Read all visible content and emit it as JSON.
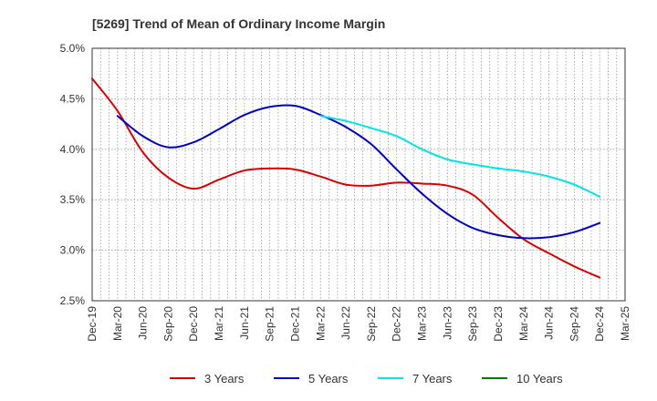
{
  "chart_data": {
    "type": "line",
    "title": "[5269]  Trend of Mean of Ordinary Income Margin",
    "xlabel": "",
    "ylabel": "",
    "x_ticks": [
      "Dec-19",
      "Mar-20",
      "Jun-20",
      "Sep-20",
      "Dec-20",
      "Mar-21",
      "Jun-21",
      "Sep-21",
      "Dec-21",
      "Mar-22",
      "Jun-22",
      "Sep-22",
      "Dec-22",
      "Mar-23",
      "Jun-23",
      "Sep-23",
      "Dec-23",
      "Mar-24",
      "Jun-24",
      "Sep-24",
      "Dec-24",
      "Mar-25"
    ],
    "y_ticks": [
      "2.5%",
      "3.0%",
      "3.5%",
      "4.0%",
      "4.5%",
      "5.0%"
    ],
    "ylim": [
      2.5,
      5.0
    ],
    "grid": true,
    "legend_position": "bottom",
    "series": [
      {
        "name": "3 Years",
        "color": "#dd0000",
        "x": [
          "Dec-19",
          "Mar-20",
          "Jun-20",
          "Sep-20",
          "Dec-20",
          "Mar-21",
          "Jun-21",
          "Sep-21",
          "Dec-21",
          "Mar-22",
          "Jun-22",
          "Sep-22",
          "Dec-22",
          "Mar-23",
          "Jun-23",
          "Sep-23",
          "Dec-23",
          "Mar-24",
          "Jun-24",
          "Sep-24",
          "Dec-24"
        ],
        "values": [
          4.7,
          4.38,
          3.97,
          3.72,
          3.61,
          3.7,
          3.79,
          3.81,
          3.8,
          3.73,
          3.65,
          3.64,
          3.67,
          3.66,
          3.64,
          3.55,
          3.32,
          3.11,
          2.97,
          2.84,
          2.73
        ]
      },
      {
        "name": "5 Years",
        "color": "#0000cc",
        "x": [
          "Mar-20",
          "Jun-20",
          "Sep-20",
          "Dec-20",
          "Mar-21",
          "Jun-21",
          "Sep-21",
          "Dec-21",
          "Mar-22",
          "Jun-22",
          "Sep-22",
          "Dec-22",
          "Mar-23",
          "Jun-23",
          "Sep-23",
          "Dec-23",
          "Mar-24",
          "Jun-24",
          "Sep-24",
          "Dec-24"
        ],
        "values": [
          4.33,
          4.13,
          4.02,
          4.07,
          4.2,
          4.34,
          4.42,
          4.43,
          4.34,
          4.22,
          4.05,
          3.8,
          3.56,
          3.36,
          3.22,
          3.15,
          3.12,
          3.13,
          3.18,
          3.27
        ]
      },
      {
        "name": "7 Years",
        "color": "#00e5e5",
        "x": [
          "Mar-22",
          "Jun-22",
          "Sep-22",
          "Dec-22",
          "Mar-23",
          "Jun-23",
          "Sep-23",
          "Dec-23",
          "Mar-24",
          "Jun-24",
          "Sep-24",
          "Dec-24"
        ],
        "values": [
          4.33,
          4.28,
          4.21,
          4.13,
          4.0,
          3.9,
          3.85,
          3.81,
          3.78,
          3.73,
          3.65,
          3.53
        ]
      },
      {
        "name": "10 Years",
        "color": "#008000",
        "x": [],
        "values": []
      }
    ]
  }
}
